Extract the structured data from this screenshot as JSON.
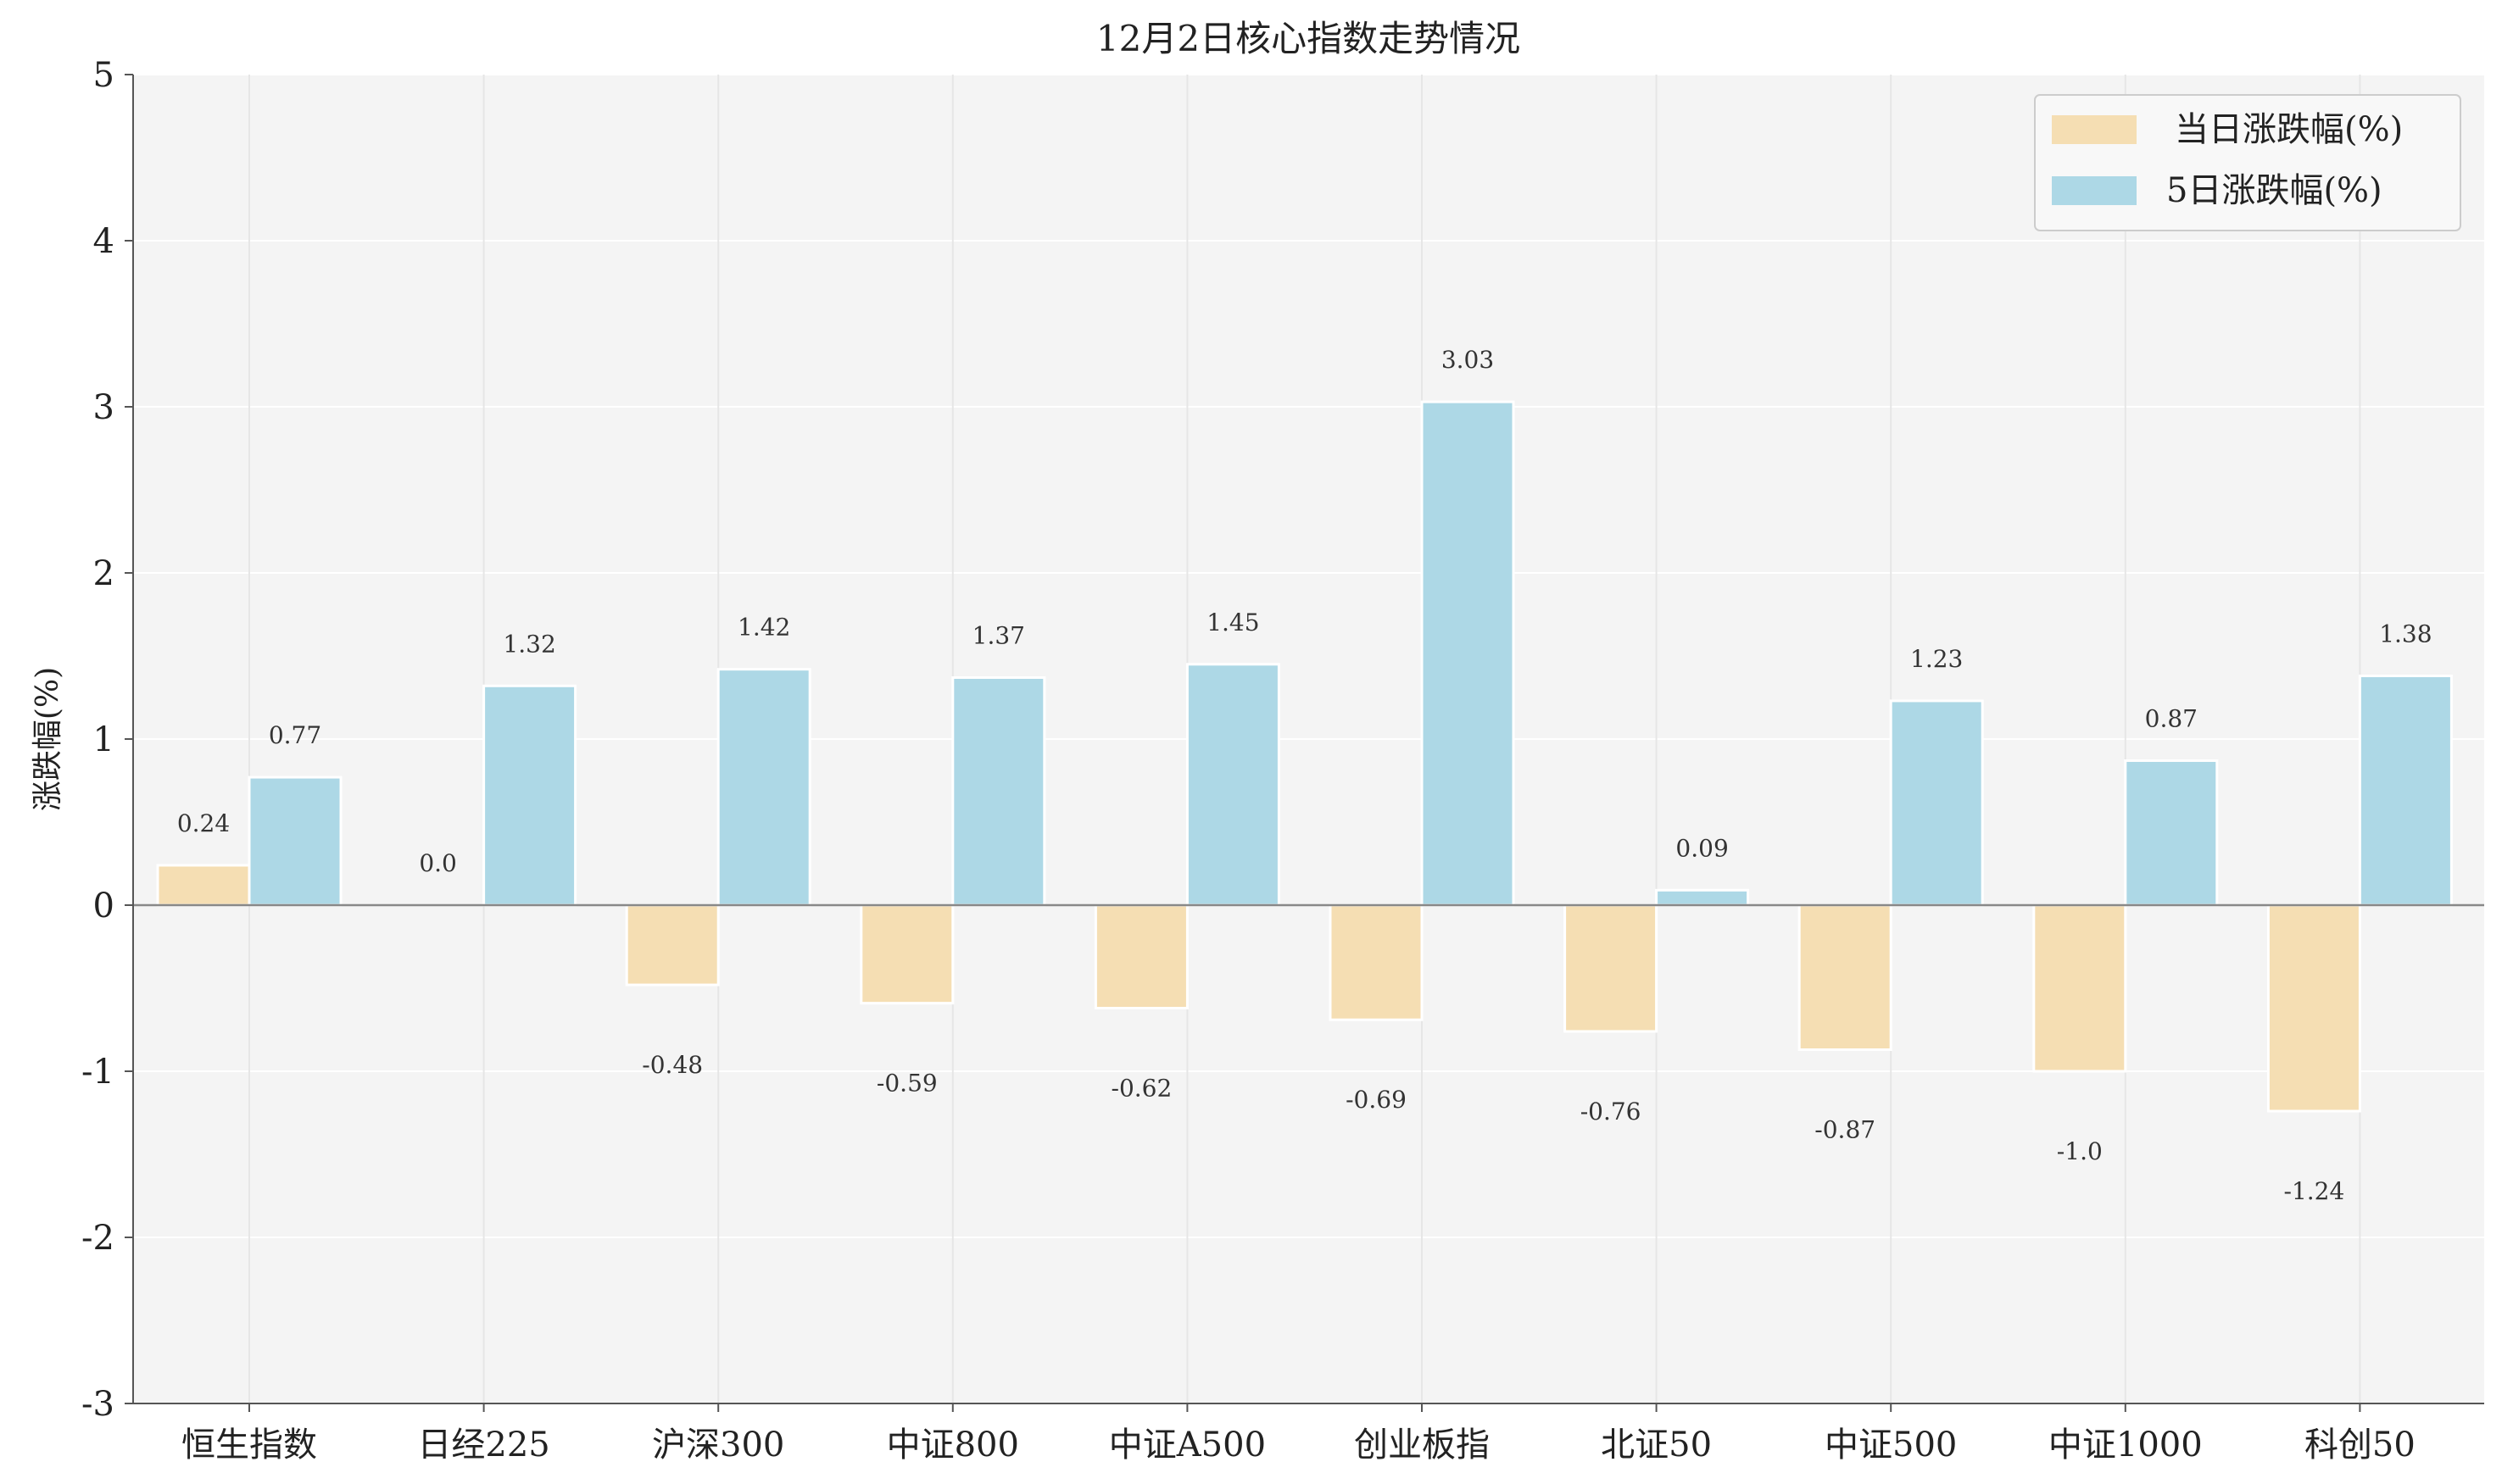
{
  "chart_data": {
    "type": "bar",
    "title": "12月2日核心指数走势情况",
    "xlabel": "",
    "ylabel": "涨跌幅(%)",
    "ylim": [
      -3,
      5
    ],
    "yticks": [
      -3,
      -2,
      -1,
      0,
      1,
      2,
      3,
      4,
      5
    ],
    "grid": true,
    "legend_position": "top-right",
    "categories": [
      "恒生指数",
      "日经225",
      "沪深300",
      "中证800",
      "中证A500",
      "创业板指",
      "北证50",
      "中证500",
      "中证1000",
      "科创50"
    ],
    "series": [
      {
        "name": "当日涨跌幅(%)",
        "color": "#F5DEB3",
        "values": [
          0.24,
          0.0,
          -0.48,
          -0.59,
          -0.62,
          -0.69,
          -0.76,
          -0.87,
          -1.0,
          -1.24
        ],
        "value_labels": [
          "0.24",
          "0.0",
          "-0.48",
          "-0.59",
          "-0.62",
          "-0.69",
          "-0.76",
          "-0.87",
          "-1.0",
          "-1.24"
        ]
      },
      {
        "name": "5日涨跌幅(%)",
        "color": "#ADD8E6",
        "values": [
          0.77,
          1.32,
          1.42,
          1.37,
          1.45,
          3.03,
          0.09,
          1.23,
          0.87,
          1.38
        ],
        "value_labels": [
          "0.77",
          "1.32",
          "1.42",
          "1.37",
          "1.45",
          "3.03",
          "0.09",
          "1.23",
          "0.87",
          "1.38"
        ]
      }
    ],
    "colors": {
      "plot_background": "#F4F4F4",
      "grid": "#FFFFFF",
      "zero_line": "#888888",
      "axis": "#555555"
    }
  }
}
